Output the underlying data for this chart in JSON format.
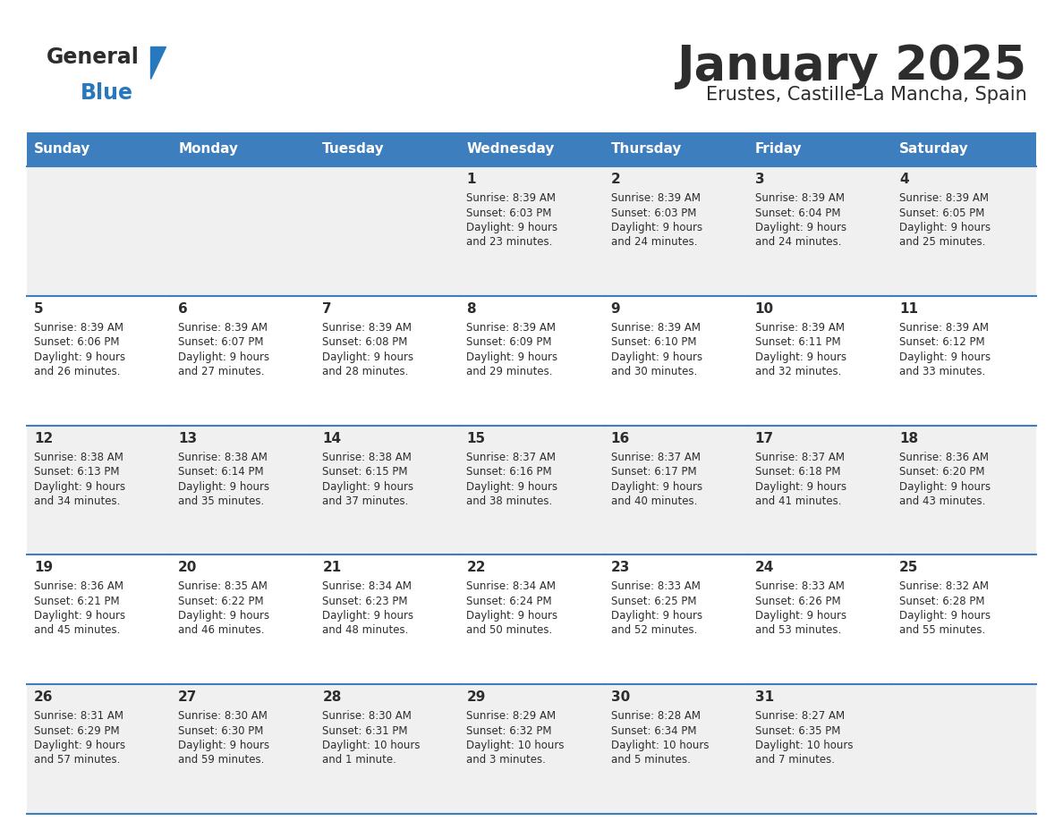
{
  "title": "January 2025",
  "subtitle": "Erustes, Castille-La Mancha, Spain",
  "header_bg": "#3d7ebf",
  "header_text": "#ffffff",
  "row_bg_odd": "#f0f0f0",
  "row_bg_even": "#ffffff",
  "separator_color": "#3d7ebf",
  "text_color": "#2d2d2d",
  "day_headers": [
    "Sunday",
    "Monday",
    "Tuesday",
    "Wednesday",
    "Thursday",
    "Friday",
    "Saturday"
  ],
  "calendar_data": [
    [
      {
        "day": "",
        "sunrise": "",
        "sunset": "",
        "daylight": ""
      },
      {
        "day": "",
        "sunrise": "",
        "sunset": "",
        "daylight": ""
      },
      {
        "day": "",
        "sunrise": "",
        "sunset": "",
        "daylight": ""
      },
      {
        "day": "1",
        "sunrise": "8:39 AM",
        "sunset": "6:03 PM",
        "daylight": "9 hours\nand 23 minutes."
      },
      {
        "day": "2",
        "sunrise": "8:39 AM",
        "sunset": "6:03 PM",
        "daylight": "9 hours\nand 24 minutes."
      },
      {
        "day": "3",
        "sunrise": "8:39 AM",
        "sunset": "6:04 PM",
        "daylight": "9 hours\nand 24 minutes."
      },
      {
        "day": "4",
        "sunrise": "8:39 AM",
        "sunset": "6:05 PM",
        "daylight": "9 hours\nand 25 minutes."
      }
    ],
    [
      {
        "day": "5",
        "sunrise": "8:39 AM",
        "sunset": "6:06 PM",
        "daylight": "9 hours\nand 26 minutes."
      },
      {
        "day": "6",
        "sunrise": "8:39 AM",
        "sunset": "6:07 PM",
        "daylight": "9 hours\nand 27 minutes."
      },
      {
        "day": "7",
        "sunrise": "8:39 AM",
        "sunset": "6:08 PM",
        "daylight": "9 hours\nand 28 minutes."
      },
      {
        "day": "8",
        "sunrise": "8:39 AM",
        "sunset": "6:09 PM",
        "daylight": "9 hours\nand 29 minutes."
      },
      {
        "day": "9",
        "sunrise": "8:39 AM",
        "sunset": "6:10 PM",
        "daylight": "9 hours\nand 30 minutes."
      },
      {
        "day": "10",
        "sunrise": "8:39 AM",
        "sunset": "6:11 PM",
        "daylight": "9 hours\nand 32 minutes."
      },
      {
        "day": "11",
        "sunrise": "8:39 AM",
        "sunset": "6:12 PM",
        "daylight": "9 hours\nand 33 minutes."
      }
    ],
    [
      {
        "day": "12",
        "sunrise": "8:38 AM",
        "sunset": "6:13 PM",
        "daylight": "9 hours\nand 34 minutes."
      },
      {
        "day": "13",
        "sunrise": "8:38 AM",
        "sunset": "6:14 PM",
        "daylight": "9 hours\nand 35 minutes."
      },
      {
        "day": "14",
        "sunrise": "8:38 AM",
        "sunset": "6:15 PM",
        "daylight": "9 hours\nand 37 minutes."
      },
      {
        "day": "15",
        "sunrise": "8:37 AM",
        "sunset": "6:16 PM",
        "daylight": "9 hours\nand 38 minutes."
      },
      {
        "day": "16",
        "sunrise": "8:37 AM",
        "sunset": "6:17 PM",
        "daylight": "9 hours\nand 40 minutes."
      },
      {
        "day": "17",
        "sunrise": "8:37 AM",
        "sunset": "6:18 PM",
        "daylight": "9 hours\nand 41 minutes."
      },
      {
        "day": "18",
        "sunrise": "8:36 AM",
        "sunset": "6:20 PM",
        "daylight": "9 hours\nand 43 minutes."
      }
    ],
    [
      {
        "day": "19",
        "sunrise": "8:36 AM",
        "sunset": "6:21 PM",
        "daylight": "9 hours\nand 45 minutes."
      },
      {
        "day": "20",
        "sunrise": "8:35 AM",
        "sunset": "6:22 PM",
        "daylight": "9 hours\nand 46 minutes."
      },
      {
        "day": "21",
        "sunrise": "8:34 AM",
        "sunset": "6:23 PM",
        "daylight": "9 hours\nand 48 minutes."
      },
      {
        "day": "22",
        "sunrise": "8:34 AM",
        "sunset": "6:24 PM",
        "daylight": "9 hours\nand 50 minutes."
      },
      {
        "day": "23",
        "sunrise": "8:33 AM",
        "sunset": "6:25 PM",
        "daylight": "9 hours\nand 52 minutes."
      },
      {
        "day": "24",
        "sunrise": "8:33 AM",
        "sunset": "6:26 PM",
        "daylight": "9 hours\nand 53 minutes."
      },
      {
        "day": "25",
        "sunrise": "8:32 AM",
        "sunset": "6:28 PM",
        "daylight": "9 hours\nand 55 minutes."
      }
    ],
    [
      {
        "day": "26",
        "sunrise": "8:31 AM",
        "sunset": "6:29 PM",
        "daylight": "9 hours\nand 57 minutes."
      },
      {
        "day": "27",
        "sunrise": "8:30 AM",
        "sunset": "6:30 PM",
        "daylight": "9 hours\nand 59 minutes."
      },
      {
        "day": "28",
        "sunrise": "8:30 AM",
        "sunset": "6:31 PM",
        "daylight": "10 hours\nand 1 minute."
      },
      {
        "day": "29",
        "sunrise": "8:29 AM",
        "sunset": "6:32 PM",
        "daylight": "10 hours\nand 3 minutes."
      },
      {
        "day": "30",
        "sunrise": "8:28 AM",
        "sunset": "6:34 PM",
        "daylight": "10 hours\nand 5 minutes."
      },
      {
        "day": "31",
        "sunrise": "8:27 AM",
        "sunset": "6:35 PM",
        "daylight": "10 hours\nand 7 minutes."
      },
      {
        "day": "",
        "sunrise": "",
        "sunset": "",
        "daylight": ""
      }
    ]
  ]
}
